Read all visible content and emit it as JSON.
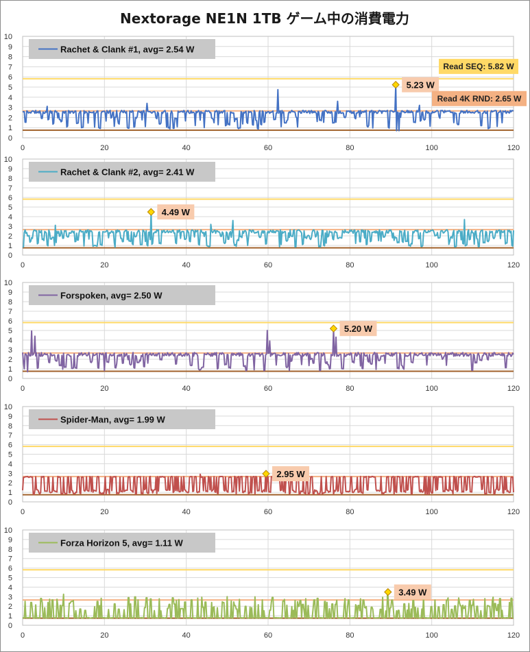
{
  "title": "Nextorage NE1N 1TB ゲーム中の消費電力",
  "colors": {
    "read_seq_line": "#FFD966",
    "read_4k_line": "#F4B183",
    "idle_line": "#A0602A",
    "grid": "#D9D9D9",
    "legend_bg": "#C8C8C8",
    "peak_label_bg": "#F8CBAD",
    "read_seq_label_bg": "#FFD966",
    "read_4k_label_bg": "#F4B183",
    "peak_marker": "#FFD700"
  },
  "chart_data": [
    {
      "type": "line",
      "legend": "Rachet & Clank #1,  avg=  2.54 W",
      "color": "#4472C4",
      "xlim": [
        0,
        120
      ],
      "ylim": [
        0,
        10
      ],
      "x_ticks": [
        "0",
        "20",
        "40",
        "60",
        "80",
        "100",
        "120"
      ],
      "y_ticks": [
        "0",
        "1",
        "2",
        "3",
        "4",
        "5",
        "6",
        "7",
        "8",
        "9",
        "10"
      ],
      "avg": 2.54,
      "ref_lines": {
        "read_seq": 5.82,
        "read_4k": 2.65,
        "idle": 0.75
      },
      "ref_labels": {
        "read_seq": "Read SEQ:  5.82 W",
        "read_4k": "Read 4K RND:  2.65 W"
      },
      "peak": {
        "x": 91.2,
        "y": 5.23,
        "label": "5.23 W"
      },
      "profile": {
        "base": 2.55,
        "noise": 0.15,
        "dip_prob": 0.15,
        "dip_low": 0.9,
        "dip_high": 2.1,
        "seed": 11
      },
      "spikes": [
        [
          62.5,
          4.75
        ],
        [
          91.2,
          5.23
        ],
        [
          91.5,
          0.7
        ],
        [
          92.0,
          0.7
        ],
        [
          30.5,
          3.4
        ],
        [
          77,
          3.6
        ],
        [
          97,
          3.2
        ],
        [
          6,
          3.1
        ]
      ]
    },
    {
      "type": "line",
      "legend": "Rachet & Clank #2,  avg=  2.41 W",
      "color": "#4BACC6",
      "xlim": [
        0,
        120
      ],
      "ylim": [
        0,
        10
      ],
      "x_ticks": [
        "0",
        "20",
        "40",
        "60",
        "80",
        "100",
        "120"
      ],
      "y_ticks": [
        "0",
        "1",
        "2",
        "3",
        "4",
        "5",
        "6",
        "7",
        "8",
        "9",
        "10"
      ],
      "avg": 2.41,
      "ref_lines": {
        "read_seq": 5.82,
        "read_4k": 2.65,
        "idle": 0.75
      },
      "peak": {
        "x": 31.4,
        "y": 4.49,
        "label": "4.49 W"
      },
      "profile": {
        "base": 2.45,
        "noise": 0.18,
        "dip_prob": 0.22,
        "dip_low": 0.8,
        "dip_high": 2.0,
        "seed": 23
      },
      "spikes": [
        [
          31.4,
          4.49
        ],
        [
          51.5,
          3.6
        ],
        [
          108,
          3.7
        ],
        [
          8,
          3.1
        ],
        [
          46,
          3.2
        ]
      ]
    },
    {
      "type": "line",
      "legend": "Forspoken,  avg=  2.50 W",
      "color": "#8064A2",
      "xlim": [
        0,
        120
      ],
      "ylim": [
        0,
        10
      ],
      "x_ticks": [
        "0",
        "20",
        "40",
        "60",
        "80",
        "100",
        "120"
      ],
      "y_ticks": [
        "0",
        "1",
        "2",
        "3",
        "4",
        "5",
        "6",
        "7",
        "8",
        "9",
        "10"
      ],
      "avg": 2.5,
      "ref_lines": {
        "read_seq": 5.82,
        "read_4k": 2.65,
        "idle": 0.75
      },
      "peak": {
        "x": 76.0,
        "y": 5.2,
        "label": "5.20 W"
      },
      "profile": {
        "base": 2.5,
        "noise": 0.2,
        "dip_prob": 0.16,
        "dip_low": 0.8,
        "dip_high": 2.0,
        "seed": 37
      },
      "spikes": [
        [
          2.3,
          4.95
        ],
        [
          3.0,
          4.4
        ],
        [
          59.8,
          5.0
        ],
        [
          60.5,
          3.9
        ],
        [
          76.0,
          5.2
        ],
        [
          76.6,
          4.3
        ],
        [
          0.5,
          1.0
        ],
        [
          1.2,
          0.7
        ]
      ]
    },
    {
      "type": "line",
      "legend": "Spider-Man,  avg=  1.99 W",
      "color": "#C0504D",
      "xlim": [
        0,
        120
      ],
      "ylim": [
        0,
        10
      ],
      "x_ticks": [
        "0",
        "20",
        "40",
        "60",
        "80",
        "100",
        "120"
      ],
      "y_ticks": [
        "0",
        "1",
        "2",
        "3",
        "4",
        "5",
        "6",
        "7",
        "8",
        "9",
        "10"
      ],
      "avg": 1.99,
      "ref_lines": {
        "read_seq": 5.82,
        "read_4k": 2.65,
        "idle": 0.75
      },
      "peak": {
        "x": 59.5,
        "y": 2.95,
        "label": "2.95 W"
      },
      "profile": {
        "base": 2.62,
        "noise": 0.05,
        "dip_prob": 0.33,
        "dip_low": 0.8,
        "dip_high": 1.3,
        "seed": 53
      },
      "spikes": [
        [
          59.5,
          2.95
        ],
        [
          43.5,
          2.9
        ]
      ]
    },
    {
      "type": "line",
      "legend": "Forza Horizon 5,  avg=  1.11 W",
      "color": "#9BBB59",
      "xlim": [
        0,
        120
      ],
      "ylim": [
        0,
        10
      ],
      "x_ticks": [
        "0",
        "20",
        "40",
        "60",
        "80",
        "100",
        "120"
      ],
      "y_ticks": [
        "0",
        "1",
        "2",
        "3",
        "4",
        "5",
        "6",
        "7",
        "8",
        "9",
        "10"
      ],
      "avg": 1.11,
      "ref_lines": {
        "read_seq": 5.82,
        "read_4k": 2.65,
        "idle": 0.75
      },
      "peak": {
        "x": 89.3,
        "y": 3.49,
        "label": "3.49 W"
      },
      "profile": {
        "mode": "spiky",
        "base": 0.78,
        "spike_prob": 0.3,
        "spike_low": 1.5,
        "spike_high": 3.0,
        "seed": 71
      },
      "spikes": [
        [
          10,
          3.25
        ],
        [
          89.3,
          3.49
        ],
        [
          50,
          3.0
        ],
        [
          98,
          3.1
        ]
      ]
    }
  ]
}
